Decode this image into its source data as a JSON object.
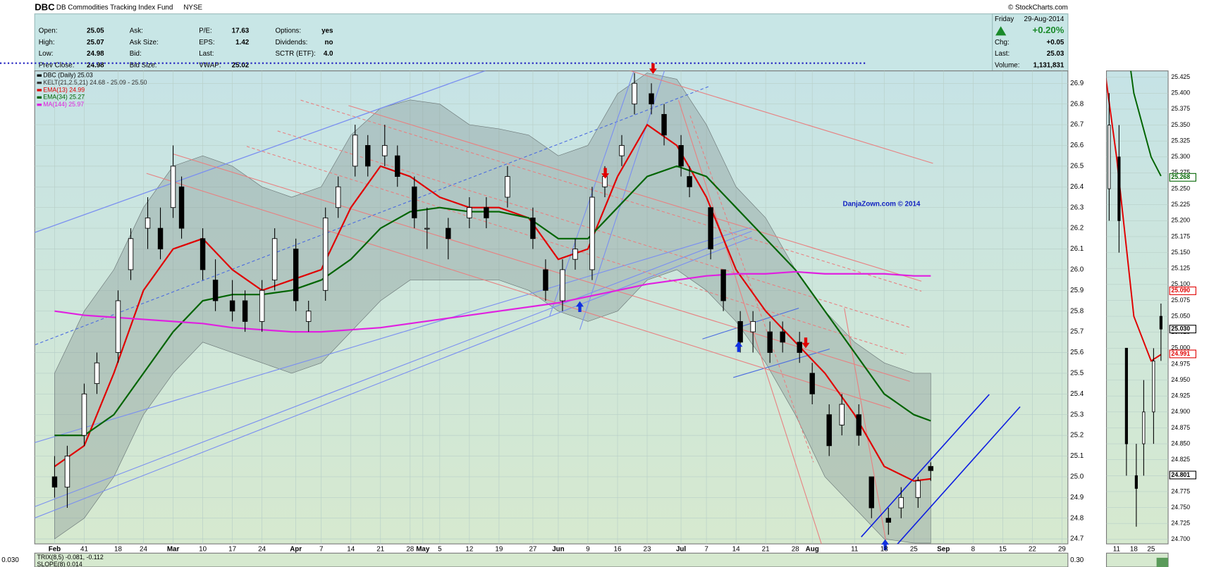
{
  "header": {
    "symbol": "DBC",
    "name": "DB Commodities Tracking Index Fund",
    "exchange": "NYSE",
    "source": "© StockCharts.com"
  },
  "quote": {
    "columns": [
      [
        {
          "label": "Open:",
          "value": "25.05"
        },
        {
          "label": "High:",
          "value": "25.07"
        },
        {
          "label": "Low:",
          "value": "24.98"
        },
        {
          "label": "Prev Close:",
          "value": "24.98"
        }
      ],
      [
        {
          "label": "Ask:"
        },
        {
          "label": "Ask Size:"
        },
        {
          "label": "Bid:"
        },
        {
          "label": "Bid Size:"
        }
      ],
      [
        {
          "label": "P/E:",
          "value": "17.63"
        },
        {
          "label": "EPS:",
          "value": "1.42"
        },
        {
          "label": "Last:"
        },
        {
          "label": "VWAP:",
          "value": "25.02"
        }
      ],
      [
        {
          "label": "Options:",
          "value": "yes"
        },
        {
          "label": "Dividends:",
          "value": "no"
        },
        {
          "label": "SCTR (ETF):",
          "value": "4.0"
        }
      ]
    ],
    "summary": {
      "day": "Friday",
      "date": "29-Aug-2014",
      "change_pct": "+0.20%",
      "fields": [
        {
          "label": "Chg:",
          "value": "+0.05"
        },
        {
          "label": "Last:",
          "value": "25.03"
        },
        {
          "label": "Volume:",
          "value": "1,131,831"
        }
      ]
    }
  },
  "chart_data": [
    {
      "type": "candlestick",
      "annotation": "DanjaZown.com © 2014",
      "grid": true,
      "xlim": [
        29.3,
        273.4
      ],
      "ylim": [
        24.676,
        26.96
      ],
      "xticks": [
        {
          "value": 34,
          "label": "Feb"
        },
        41,
        {
          "value": 49,
          "label": "18"
        },
        {
          "value": 55,
          "label": "24"
        },
        {
          "value": 62,
          "label": "Mar"
        },
        {
          "value": 69,
          "label": "10"
        },
        {
          "value": 76,
          "label": "17"
        },
        {
          "value": 83,
          "label": "24"
        },
        {
          "value": 91,
          "label": "Apr"
        },
        {
          "value": 97,
          "label": "7"
        },
        {
          "value": 104,
          "label": "14"
        },
        {
          "value": 111,
          "label": "21"
        },
        {
          "value": 118,
          "label": "28"
        },
        {
          "value": 121,
          "label": "May"
        },
        {
          "value": 125,
          "label": "5"
        },
        {
          "value": 132,
          "label": "12"
        },
        {
          "value": 139,
          "label": "19"
        },
        {
          "value": 147,
          "label": "27"
        },
        {
          "value": 153,
          "label": "Jun"
        },
        {
          "value": 160,
          "label": "9"
        },
        {
          "value": 167,
          "label": "16"
        },
        {
          "value": 174,
          "label": "23"
        },
        {
          "value": 182,
          "label": "Jul"
        },
        {
          "value": 188,
          "label": "7"
        },
        {
          "value": 195,
          "label": "14"
        },
        {
          "value": 202,
          "label": "21"
        },
        {
          "value": 209,
          "label": "28"
        },
        {
          "value": 213,
          "label": "Aug"
        },
        {
          "value": 223,
          "label": "11"
        },
        {
          "value": 230,
          "label": "18"
        },
        {
          "value": 237,
          "label": "25"
        },
        {
          "value": 244,
          "label": "Sep"
        },
        {
          "value": 251,
          "label": "8"
        },
        {
          "value": 258,
          "label": "15"
        },
        {
          "value": 265,
          "label": "22"
        },
        {
          "value": 272,
          "label": "29"
        }
      ],
      "yticks": [
        24.7,
        24.8,
        24.9,
        {
          "value": 25,
          "label": "25.0"
        },
        25.1,
        25.2,
        25.3,
        25.4,
        25.5,
        25.6,
        25.7,
        25.8,
        25.9,
        {
          "value": 26,
          "label": "26.0"
        },
        26.1,
        26.2,
        26.3,
        26.4,
        26.5,
        26.6,
        26.7,
        26.8,
        26.9
      ],
      "candles": {
        "name": "DBC (Daily) 25.03",
        "up_color": "#ffffff",
        "down_color": "#000000",
        "x": [
          34,
          37,
          41,
          44,
          49,
          52,
          56,
          59,
          62,
          64,
          69,
          72,
          76,
          79,
          83,
          86,
          91,
          94,
          98,
          101,
          105,
          108,
          112,
          115,
          119,
          122,
          127,
          132,
          136,
          141,
          147,
          150,
          154,
          157,
          161,
          164,
          168,
          171,
          175,
          178,
          182,
          184,
          189,
          192,
          196,
          199,
          203,
          206,
          210,
          213,
          217,
          220,
          224,
          227,
          231,
          234,
          238,
          241
        ],
        "open": [
          25.0,
          24.95,
          25.2,
          25.45,
          25.6,
          26.0,
          26.2,
          26.2,
          26.3,
          26.4,
          26.15,
          25.95,
          25.85,
          25.85,
          25.75,
          25.95,
          26.1,
          25.75,
          25.9,
          26.3,
          26.5,
          26.6,
          26.55,
          26.55,
          26.4,
          26.2,
          26.2,
          26.25,
          26.3,
          26.35,
          26.25,
          26.0,
          25.85,
          26.05,
          26.0,
          26.4,
          26.55,
          26.8,
          26.85,
          26.75,
          26.6,
          26.45,
          26.3,
          26.0,
          25.75,
          25.7,
          25.7,
          25.7,
          25.65,
          25.5,
          25.3,
          25.25,
          25.3,
          25.0,
          24.8,
          24.85,
          24.9,
          25.05
        ],
        "high": [
          25.1,
          25.15,
          25.45,
          25.6,
          25.9,
          26.2,
          26.35,
          26.3,
          26.6,
          26.45,
          26.2,
          26.05,
          25.95,
          25.9,
          25.95,
          26.2,
          26.15,
          25.85,
          26.3,
          26.45,
          26.7,
          26.65,
          26.7,
          26.6,
          26.45,
          26.3,
          26.25,
          26.35,
          26.35,
          26.5,
          26.3,
          26.05,
          26.05,
          26.15,
          26.4,
          26.5,
          26.65,
          26.95,
          26.9,
          26.8,
          26.65,
          26.5,
          26.3,
          26.0,
          25.8,
          25.8,
          25.75,
          25.75,
          25.7,
          25.55,
          25.35,
          25.4,
          25.35,
          25.0,
          24.85,
          24.95,
          25.0,
          25.07
        ],
        "low": [
          24.9,
          24.85,
          25.15,
          25.4,
          25.55,
          25.95,
          26.1,
          26.05,
          26.25,
          26.15,
          25.95,
          25.8,
          25.75,
          25.7,
          25.7,
          25.9,
          25.8,
          25.7,
          25.85,
          26.25,
          26.45,
          26.45,
          26.5,
          26.4,
          26.2,
          26.1,
          26.05,
          26.2,
          26.2,
          26.3,
          26.1,
          25.85,
          25.8,
          26.0,
          25.95,
          26.35,
          26.5,
          26.75,
          26.75,
          26.6,
          26.45,
          26.35,
          26.05,
          25.8,
          25.6,
          25.6,
          25.55,
          25.6,
          25.55,
          25.35,
          25.1,
          25.2,
          25.15,
          24.8,
          24.72,
          24.8,
          24.85,
          24.98
        ],
        "close": [
          24.95,
          25.1,
          25.4,
          25.55,
          25.85,
          26.15,
          26.25,
          26.1,
          26.5,
          26.2,
          26.0,
          25.85,
          25.8,
          25.75,
          25.9,
          26.15,
          25.85,
          25.8,
          26.25,
          26.4,
          26.65,
          26.5,
          26.6,
          26.45,
          26.25,
          26.2,
          26.15,
          26.3,
          26.25,
          26.45,
          26.15,
          25.9,
          26.0,
          26.1,
          26.35,
          26.45,
          26.6,
          26.9,
          26.8,
          26.65,
          26.5,
          26.4,
          26.1,
          25.85,
          25.65,
          25.75,
          25.6,
          25.65,
          25.6,
          25.4,
          25.15,
          25.35,
          25.2,
          24.85,
          24.78,
          24.9,
          24.98,
          25.03
        ]
      },
      "kelt": {
        "name": "KELT(21,2.5,21) 24.68 - 25.09 - 25.50",
        "color": "#7f8c8c",
        "x": [
          34,
          41,
          48,
          55,
          62,
          69,
          76,
          83,
          90,
          97,
          104,
          111,
          118,
          125,
          132,
          139,
          146,
          153,
          160,
          167,
          174,
          181,
          188,
          195,
          202,
          209,
          216,
          223,
          230,
          237,
          241
        ],
        "upper": [
          25.5,
          25.8,
          26.0,
          26.3,
          26.5,
          26.55,
          26.5,
          26.4,
          26.35,
          26.4,
          26.65,
          26.78,
          26.82,
          26.8,
          26.7,
          26.68,
          26.65,
          26.55,
          26.6,
          26.85,
          26.95,
          26.92,
          26.7,
          26.4,
          26.25,
          26.0,
          25.8,
          25.65,
          25.55,
          25.5,
          25.5
        ],
        "lower": [
          24.7,
          24.8,
          25.0,
          25.3,
          25.5,
          25.65,
          25.6,
          25.55,
          25.5,
          25.55,
          25.7,
          25.85,
          25.95,
          25.95,
          25.95,
          25.95,
          25.9,
          25.8,
          25.75,
          25.8,
          25.95,
          26.0,
          25.9,
          25.75,
          25.55,
          25.3,
          25.0,
          24.85,
          24.7,
          24.68,
          24.68
        ]
      },
      "series": [
        {
          "name": "EMA(13) 24.99",
          "color": "#e00000",
          "x": [
            34,
            41,
            48,
            55,
            62,
            69,
            76,
            83,
            90,
            97,
            104,
            111,
            118,
            125,
            132,
            139,
            146,
            153,
            160,
            167,
            174,
            181,
            188,
            195,
            202,
            209,
            216,
            223,
            230,
            237,
            241
          ],
          "values": [
            25.05,
            25.15,
            25.5,
            25.9,
            26.1,
            26.15,
            26.0,
            25.9,
            25.95,
            26.0,
            26.3,
            26.5,
            26.45,
            26.35,
            26.3,
            26.3,
            26.25,
            26.05,
            26.1,
            26.45,
            26.7,
            26.6,
            26.35,
            26.0,
            25.8,
            25.65,
            25.5,
            25.3,
            25.05,
            24.98,
            24.99
          ]
        },
        {
          "name": "EMA(34) 25.27",
          "color": "#006400",
          "x": [
            34,
            41,
            48,
            55,
            62,
            69,
            76,
            83,
            90,
            97,
            104,
            111,
            118,
            125,
            132,
            139,
            146,
            153,
            160,
            167,
            174,
            181,
            188,
            195,
            202,
            209,
            216,
            223,
            230,
            237,
            241
          ],
          "values": [
            25.2,
            25.2,
            25.3,
            25.5,
            25.7,
            25.85,
            25.88,
            25.88,
            25.9,
            25.95,
            26.05,
            26.2,
            26.28,
            26.3,
            26.28,
            26.28,
            26.25,
            26.15,
            26.15,
            26.3,
            26.45,
            26.5,
            26.45,
            26.3,
            26.15,
            26.0,
            25.8,
            25.6,
            25.4,
            25.3,
            25.27
          ]
        },
        {
          "name": "MA(144) 25.97",
          "color": "#e020e0",
          "x": [
            34,
            41,
            48,
            55,
            62,
            69,
            76,
            83,
            90,
            97,
            104,
            111,
            118,
            125,
            132,
            139,
            146,
            153,
            160,
            167,
            174,
            181,
            188,
            195,
            202,
            209,
            216,
            223,
            230,
            237,
            241
          ],
          "values": [
            25.8,
            25.78,
            25.77,
            25.76,
            25.75,
            25.74,
            25.72,
            25.71,
            25.7,
            25.7,
            25.71,
            25.72,
            25.74,
            25.76,
            25.78,
            25.8,
            25.82,
            25.84,
            25.87,
            25.9,
            25.93,
            25.95,
            25.97,
            25.98,
            25.98,
            25.99,
            25.98,
            25.98,
            25.98,
            25.97,
            25.97
          ]
        }
      ]
    },
    {
      "type": "candlestick-zoom",
      "xlim": [
        218.9,
        243.9
      ],
      "ylim": [
        24.693,
        25.435
      ],
      "xticks": [
        {
          "value": 223,
          "label": "11"
        },
        {
          "value": 230,
          "label": "18"
        },
        {
          "value": 237,
          "label": "25"
        }
      ],
      "yticks": [
        {
          "value": 24.7,
          "label": "24.700"
        },
        24.725,
        {
          "value": 24.75,
          "label": "24.750"
        },
        24.775,
        {
          "value": 24.8,
          "label": "24.800"
        },
        24.825,
        {
          "value": 24.85,
          "label": "24.850"
        },
        24.875,
        {
          "value": 24.9,
          "label": "24.900"
        },
        24.925,
        {
          "value": 24.95,
          "label": "24.950"
        },
        24.975,
        {
          "value": 25,
          "label": "25.000"
        },
        25.025,
        {
          "value": 25.05,
          "label": "25.050"
        },
        25.075,
        {
          "value": 25.1,
          "label": "25.100"
        },
        25.125,
        {
          "value": 25.15,
          "label": "25.150"
        },
        25.175,
        {
          "value": 25.2,
          "label": "25.200"
        },
        25.225,
        {
          "value": 25.25,
          "label": "25.250"
        },
        25.275,
        {
          "value": 25.3,
          "label": "25.300"
        },
        25.325,
        {
          "value": 25.35,
          "label": "25.350"
        },
        25.375,
        {
          "value": 25.4,
          "label": "25.400"
        },
        25.425
      ],
      "price_badges": [
        {
          "value": 25.268,
          "label": "25.268",
          "color": "#006400"
        },
        {
          "value": 25.09,
          "label": "25.090",
          "color": "#e00000"
        },
        {
          "value": 25.03,
          "label": "25.030",
          "color": "#000000"
        },
        {
          "value": 24.991,
          "label": "24.991",
          "color": "#e00000"
        },
        {
          "value": 24.801,
          "label": "24.801",
          "color": "#000000"
        }
      ]
    }
  ],
  "lower_panel": {
    "left_label": "0.030",
    "right_label": "0.30",
    "legend": [
      "TRIX(8,5) -0.081, -0.112",
      "SLOPE(8) 0.014"
    ]
  }
}
